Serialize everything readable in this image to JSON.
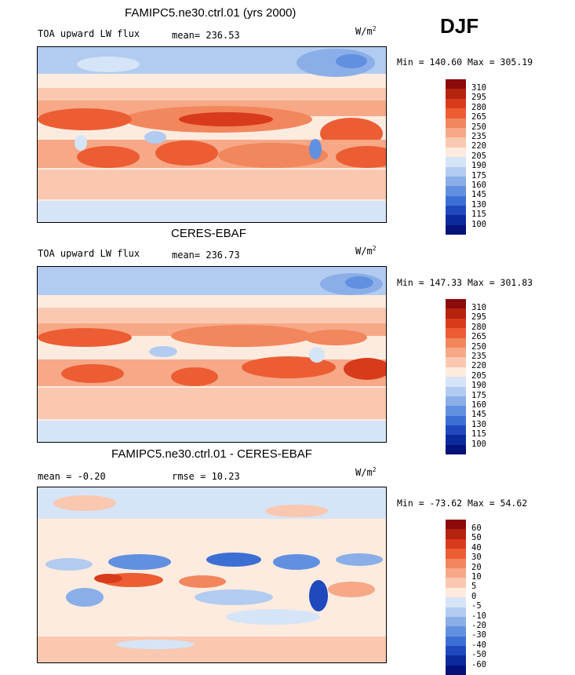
{
  "season": "DJF",
  "units_text": "W/m",
  "units_exp": "2",
  "panels": [
    {
      "id": "model",
      "title": "FAMIPC5.ne30.ctrl.01 (yrs 2000)",
      "left_label": "TOA upward LW flux",
      "stat_text": "mean= 236.53",
      "minmax": "Min = 140.60 Max = 305.19",
      "colorbar": [
        "310",
        "295",
        "280",
        "265",
        "250",
        "235",
        "220",
        "205",
        "190",
        "175",
        "160",
        "145",
        "130",
        "115",
        "100"
      ]
    },
    {
      "id": "obs",
      "title": "CERES-EBAF",
      "left_label": "TOA upward LW flux",
      "stat_text": "mean= 236.73",
      "minmax": "Min = 147.33 Max = 301.83",
      "colorbar": [
        "310",
        "295",
        "280",
        "265",
        "250",
        "235",
        "220",
        "205",
        "190",
        "175",
        "160",
        "145",
        "130",
        "115",
        "100"
      ]
    },
    {
      "id": "diff",
      "title": "FAMIPC5.ne30.ctrl.01 - CERES-EBAF",
      "left_label": "mean =  -0.20",
      "stat_text": "rmse =  10.23",
      "minmax": "Min = -73.62 Max =  54.62",
      "colorbar": [
        "60",
        "50",
        "40",
        "30",
        "20",
        "10",
        "5",
        "0",
        "-5",
        "-10",
        "-20",
        "-30",
        "-40",
        "-50",
        "-60"
      ]
    }
  ],
  "palette": [
    "#8c0a0a",
    "#b4240f",
    "#d83b1c",
    "#ec5d34",
    "#f2865c",
    "#f6a887",
    "#fac8b0",
    "#fdebdf",
    "#d6e4f7",
    "#b2cbf0",
    "#8aaee8",
    "#6290e0",
    "#3c6fd4",
    "#2049bd",
    "#0b2a9c",
    "#04127a"
  ]
}
